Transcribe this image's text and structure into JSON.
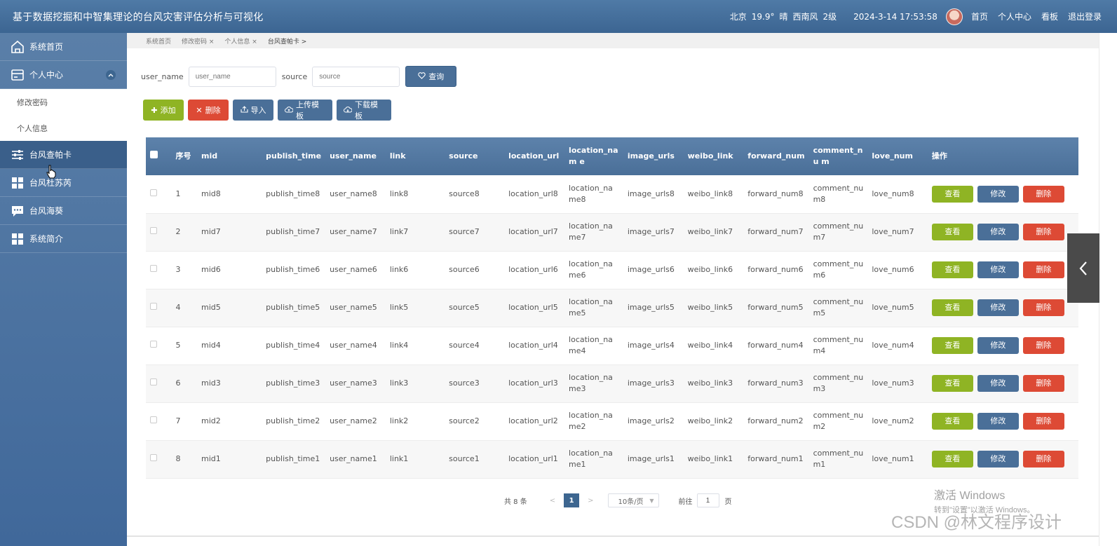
{
  "header": {
    "title": "基于数据挖掘和中智集理论的台风灾害评估分析与可视化",
    "weather": {
      "city": "北京",
      "temperature": "19.9°",
      "condition": "晴",
      "wind": "西南风",
      "level": "2级"
    },
    "datetime": "2024-3-14 17:53:58",
    "nav": [
      "首页",
      "个人中心",
      "看板",
      "退出登录"
    ]
  },
  "sidebar": {
    "items": [
      {
        "label": "系统首页",
        "icon": "home-icon"
      },
      {
        "label": "个人中心",
        "icon": "wallet-icon",
        "expanded": true,
        "children": [
          "修改密码",
          "个人信息"
        ]
      },
      {
        "label": "台风查帕卡",
        "icon": "sliders-icon",
        "active": true
      },
      {
        "label": "台风杜苏芮",
        "icon": "grid-icon"
      },
      {
        "label": "台风海葵",
        "icon": "chat-icon"
      },
      {
        "label": "系统简介",
        "icon": "grid-icon"
      }
    ]
  },
  "breadcrumb": [
    "系统首页",
    "修改密码 ×",
    "个人信息 ×",
    "台风查帕卡 >"
  ],
  "search": {
    "user_name_label": "user_name",
    "user_name_placeholder": "user_name",
    "source_label": "source",
    "source_placeholder": "source",
    "query_label": "查询"
  },
  "toolbar": {
    "add": "添加",
    "delete": "删除",
    "import": "导入",
    "upload_template": "上传模板",
    "download_template": "下载模板"
  },
  "table": {
    "headers": [
      "序号",
      "mid",
      "publish_time",
      "user_name",
      "link",
      "source",
      "location_url",
      "location_name",
      "image_urls",
      "weibo_link",
      "forward_num",
      "comment_num",
      "love_num",
      "操作"
    ],
    "header_display": [
      "序号",
      "mid",
      "publish_time",
      "user_name",
      "link",
      "source",
      "location_url",
      "location_nam e",
      "image_urls",
      "weibo_link",
      "forward_num",
      "comment_nu m",
      "love_num",
      "操作"
    ],
    "row_buttons": {
      "view": "查看",
      "edit": "修改",
      "delete": "删除"
    },
    "rows": [
      {
        "no": "1",
        "mid": "mid8",
        "publish_time": "publish_time8",
        "user_name": "user_name8",
        "link": "link8",
        "source": "source8",
        "location_url": "location_url8",
        "location_name": "location_name8",
        "image_urls": "image_urls8",
        "weibo_link": "weibo_link8",
        "forward_num": "forward_num8",
        "comment_num": "comment_num8",
        "love_num": "love_num8"
      },
      {
        "no": "2",
        "mid": "mid7",
        "publish_time": "publish_time7",
        "user_name": "user_name7",
        "link": "link7",
        "source": "source7",
        "location_url": "location_url7",
        "location_name": "location_name7",
        "image_urls": "image_urls7",
        "weibo_link": "weibo_link7",
        "forward_num": "forward_num7",
        "comment_num": "comment_num7",
        "love_num": "love_num7"
      },
      {
        "no": "3",
        "mid": "mid6",
        "publish_time": "publish_time6",
        "user_name": "user_name6",
        "link": "link6",
        "source": "source6",
        "location_url": "location_url6",
        "location_name": "location_name6",
        "image_urls": "image_urls6",
        "weibo_link": "weibo_link6",
        "forward_num": "forward_num6",
        "comment_num": "comment_num6",
        "love_num": "love_num6"
      },
      {
        "no": "4",
        "mid": "mid5",
        "publish_time": "publish_time5",
        "user_name": "user_name5",
        "link": "link5",
        "source": "source5",
        "location_url": "location_url5",
        "location_name": "location_name5",
        "image_urls": "image_urls5",
        "weibo_link": "weibo_link5",
        "forward_num": "forward_num5",
        "comment_num": "comment_num5",
        "love_num": "love_num5"
      },
      {
        "no": "5",
        "mid": "mid4",
        "publish_time": "publish_time4",
        "user_name": "user_name4",
        "link": "link4",
        "source": "source4",
        "location_url": "location_url4",
        "location_name": "location_name4",
        "image_urls": "image_urls4",
        "weibo_link": "weibo_link4",
        "forward_num": "forward_num4",
        "comment_num": "comment_num4",
        "love_num": "love_num4"
      },
      {
        "no": "6",
        "mid": "mid3",
        "publish_time": "publish_time3",
        "user_name": "user_name3",
        "link": "link3",
        "source": "source3",
        "location_url": "location_url3",
        "location_name": "location_name3",
        "image_urls": "image_urls3",
        "weibo_link": "weibo_link3",
        "forward_num": "forward_num3",
        "comment_num": "comment_num3",
        "love_num": "love_num3"
      },
      {
        "no": "7",
        "mid": "mid2",
        "publish_time": "publish_time2",
        "user_name": "user_name2",
        "link": "link2",
        "source": "source2",
        "location_url": "location_url2",
        "location_name": "location_name2",
        "image_urls": "image_urls2",
        "weibo_link": "weibo_link2",
        "forward_num": "forward_num2",
        "comment_num": "comment_num2",
        "love_num": "love_num2"
      },
      {
        "no": "8",
        "mid": "mid1",
        "publish_time": "publish_time1",
        "user_name": "user_name1",
        "link": "link1",
        "source": "source1",
        "location_url": "location_url1",
        "location_name": "location_name1",
        "image_urls": "image_urls1",
        "weibo_link": "weibo_link1",
        "forward_num": "forward_num1",
        "comment_num": "comment_num1",
        "love_num": "love_num1"
      }
    ]
  },
  "pagination": {
    "total": "共 8 条",
    "prev": "<",
    "current_page": "1",
    "next": ">",
    "page_size": "10条/页",
    "goto_label": "前往",
    "goto_value": "1",
    "page_unit": "页"
  },
  "watermark": {
    "windows_line1": "激活 Windows",
    "windows_line2": "转到\"设置\"以激活 Windows。",
    "csdn": "CSDN @林文程序设计"
  },
  "colors": {
    "header_bg": "#3c6592",
    "primary": "#4a6f98",
    "success": "#8fb424",
    "danger": "#dd4a35"
  }
}
